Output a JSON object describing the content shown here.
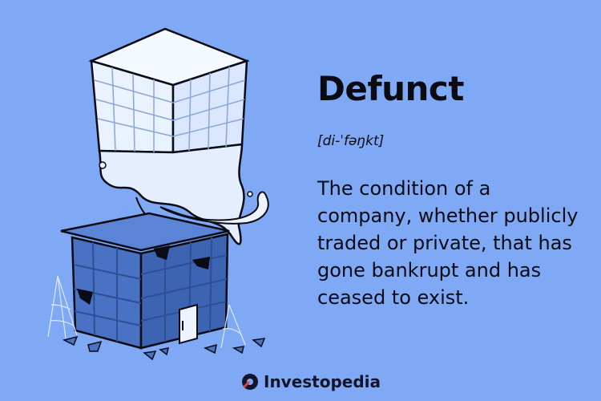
{
  "term": "Defunct",
  "pronunciation": "[di-ˈfəŋkt]",
  "definition": "The condition of a company, whether publicly traded or private, that has gone bankrupt and has ceased to exist.",
  "brand": {
    "name": "Investopedia",
    "logo_icon": "investopedia-logo-icon"
  },
  "illustration": {
    "subject": "ghost-building-icon"
  },
  "colors": {
    "background": "#7fa9f5",
    "text": "#0b0b14",
    "building": "#4a72c4",
    "building_dark": "#2f4e93",
    "ghost": "#eef4ff"
  }
}
